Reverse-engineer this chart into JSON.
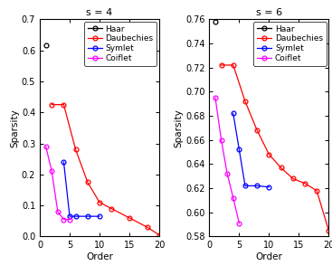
{
  "s4": {
    "title": "s = 4",
    "haar": {
      "x": [
        1
      ],
      "y": [
        0.615
      ]
    },
    "daubechies": {
      "x": [
        2,
        4,
        6,
        8,
        10,
        12,
        15,
        18,
        20
      ],
      "y": [
        0.425,
        0.425,
        0.28,
        0.175,
        0.11,
        0.09,
        0.06,
        0.03,
        0.005
      ]
    },
    "symlet": {
      "x": [
        4,
        5,
        6,
        8,
        10
      ],
      "y": [
        0.24,
        0.065,
        0.065,
        0.065,
        0.065
      ]
    },
    "coiflet": {
      "x": [
        1,
        2,
        3,
        4,
        5
      ],
      "y": [
        0.29,
        0.21,
        0.08,
        0.055,
        0.055
      ]
    },
    "ylim": [
      0,
      0.7
    ],
    "yticks": [
      0.0,
      0.1,
      0.2,
      0.3,
      0.4,
      0.5,
      0.6,
      0.7
    ],
    "xlim": [
      0,
      20
    ],
    "xticks": [
      0,
      5,
      10,
      15,
      20
    ]
  },
  "s6": {
    "title": "s = 6",
    "haar": {
      "x": [
        1
      ],
      "y": [
        0.758
      ]
    },
    "daubechies": {
      "x": [
        2,
        4,
        6,
        8,
        10,
        12,
        14,
        16,
        18,
        20
      ],
      "y": [
        0.722,
        0.722,
        0.692,
        0.668,
        0.648,
        0.637,
        0.628,
        0.624,
        0.618,
        0.585
      ]
    },
    "symlet": {
      "x": [
        4,
        5,
        6,
        8,
        10
      ],
      "y": [
        0.682,
        0.652,
        0.622,
        0.622,
        0.621
      ]
    },
    "coiflet": {
      "x": [
        1,
        2,
        3,
        4,
        5
      ],
      "y": [
        0.695,
        0.66,
        0.632,
        0.612,
        0.591
      ]
    },
    "ylim": [
      0.58,
      0.76
    ],
    "yticks": [
      0.58,
      0.6,
      0.62,
      0.64,
      0.66,
      0.68,
      0.7,
      0.72,
      0.74,
      0.76
    ],
    "xlim": [
      0,
      20
    ],
    "xticks": [
      0,
      5,
      10,
      15,
      20
    ]
  },
  "haar_color": "#000000",
  "daub_color": "#ff0000",
  "sym_color": "#0000ff",
  "coif_color": "#ff00ff",
  "marker": "o",
  "linewidth": 0.9,
  "markersize": 3.5,
  "xlabel": "Order",
  "ylabel": "Sparsity",
  "bg_color": "#ffffff",
  "legend_fontsize": 6.5,
  "tick_fontsize": 7,
  "title_fontsize": 8,
  "label_fontsize": 7.5
}
